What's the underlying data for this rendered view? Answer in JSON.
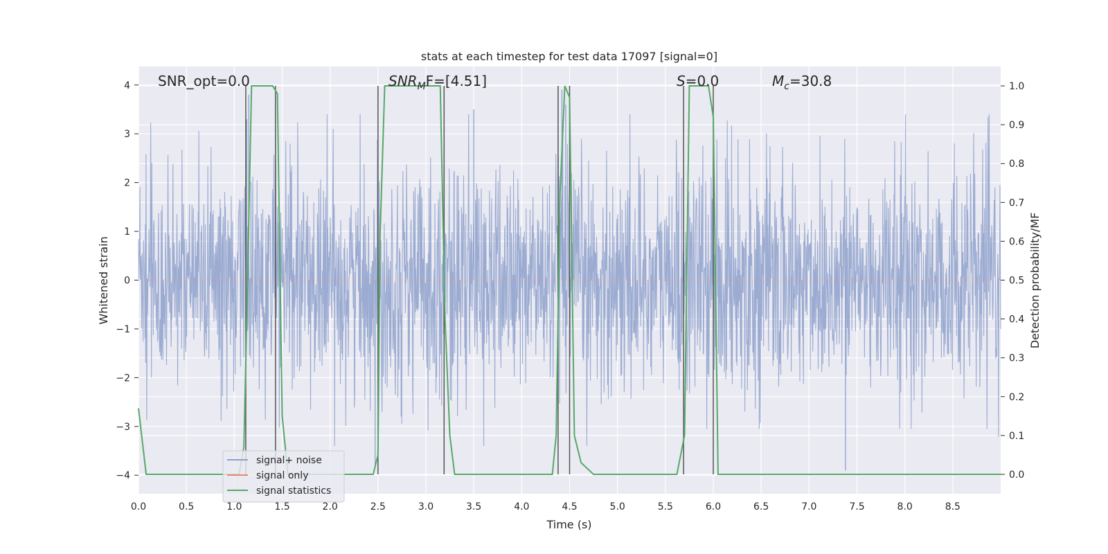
{
  "chart_data": {
    "type": "line",
    "title": "stats at each timestep for test data 17097 [signal=0]",
    "xlabel": "Time (s)",
    "ylabel_left": "Whitened strain",
    "ylabel_right": "Detection probability/MF",
    "xlim": [
      0,
      9.0
    ],
    "ylim_left": [
      -4.38,
      4.38
    ],
    "ylim_right": [
      -0.05,
      1.05
    ],
    "x_ticks": [
      "0.0",
      "0.5",
      "1.0",
      "1.5",
      "2.0",
      "2.5",
      "3.0",
      "3.5",
      "4.0",
      "4.5",
      "5.0",
      "5.5",
      "6.0",
      "6.5",
      "7.0",
      "7.5",
      "8.0",
      "8.5"
    ],
    "y_left_ticks": [
      "4",
      "3",
      "2",
      "1",
      "0",
      "−1",
      "−2",
      "−3",
      "−4"
    ],
    "y_right_ticks": [
      "1.0",
      "0.9",
      "0.8",
      "0.7",
      "0.6",
      "0.5",
      "0.4",
      "0.3",
      "0.2",
      "0.1",
      "0.0"
    ],
    "grid": true,
    "legend_position": "lower-left",
    "annotations": {
      "snr_opt": "SNR_opt=0.0",
      "snr_mf_sym": "SNR",
      "snr_mf_sub": "M",
      "snr_mf_rest": "F=[4.51]",
      "s_sym": "S",
      "s_rest": "=0.0",
      "mc_sym": "M",
      "mc_sub": "c",
      "mc_rest": "=30.8"
    },
    "series": [
      {
        "name": "signal+ noise",
        "color": "#8da0cb",
        "note": "dense whitened strain noise, roughly ±2 with excursions to about ±3.8",
        "noise_range": [
          -4.0,
          4.0
        ]
      },
      {
        "name": "signal only",
        "color": "#e5866a",
        "values": "zero (no signal)"
      },
      {
        "name": "signal statistics",
        "color": "#55a868",
        "x": [
          0.0,
          0.08,
          0.15,
          1.05,
          1.1,
          1.13,
          1.18,
          1.4,
          1.45,
          1.5,
          1.56,
          2.45,
          2.5,
          2.52,
          2.57,
          3.15,
          3.2,
          3.25,
          3.3,
          4.32,
          4.36,
          4.4,
          4.45,
          4.5,
          4.55,
          4.62,
          4.75,
          5.62,
          5.7,
          5.75,
          5.95,
          6.0,
          6.05,
          9.0
        ],
        "values": [
          0.17,
          0.0,
          0.0,
          0.0,
          0.07,
          0.4,
          1.0,
          1.0,
          0.98,
          0.15,
          0.0,
          0.0,
          0.05,
          0.6,
          1.0,
          1.0,
          0.4,
          0.1,
          0.0,
          0.0,
          0.1,
          0.72,
          1.0,
          0.97,
          0.1,
          0.03,
          0.0,
          0.0,
          0.1,
          1.0,
          1.0,
          0.92,
          0.0,
          0.0
        ]
      }
    ],
    "vertical_markers": [
      1.12,
      1.43,
      2.5,
      3.19,
      4.38,
      4.5,
      5.69,
      6.0
    ],
    "spikes": [
      {
        "x": 1.13,
        "y": 3.3
      },
      {
        "x": 1.15,
        "y": 3.8
      },
      {
        "x": 1.43,
        "y": 3.8
      },
      {
        "x": 2.47,
        "y": -3.8
      },
      {
        "x": 3.5,
        "y": 3.5
      },
      {
        "x": 4.42,
        "y": 3.9
      },
      {
        "x": 4.46,
        "y": 3.6
      },
      {
        "x": 7.38,
        "y": -3.9
      }
    ],
    "colors": {
      "background": "#eaeaf2",
      "grid": "#ffffff",
      "noise": "#8da0cb",
      "signal_only": "#e5866a",
      "stats": "#55a868",
      "marker": "#555555"
    }
  }
}
